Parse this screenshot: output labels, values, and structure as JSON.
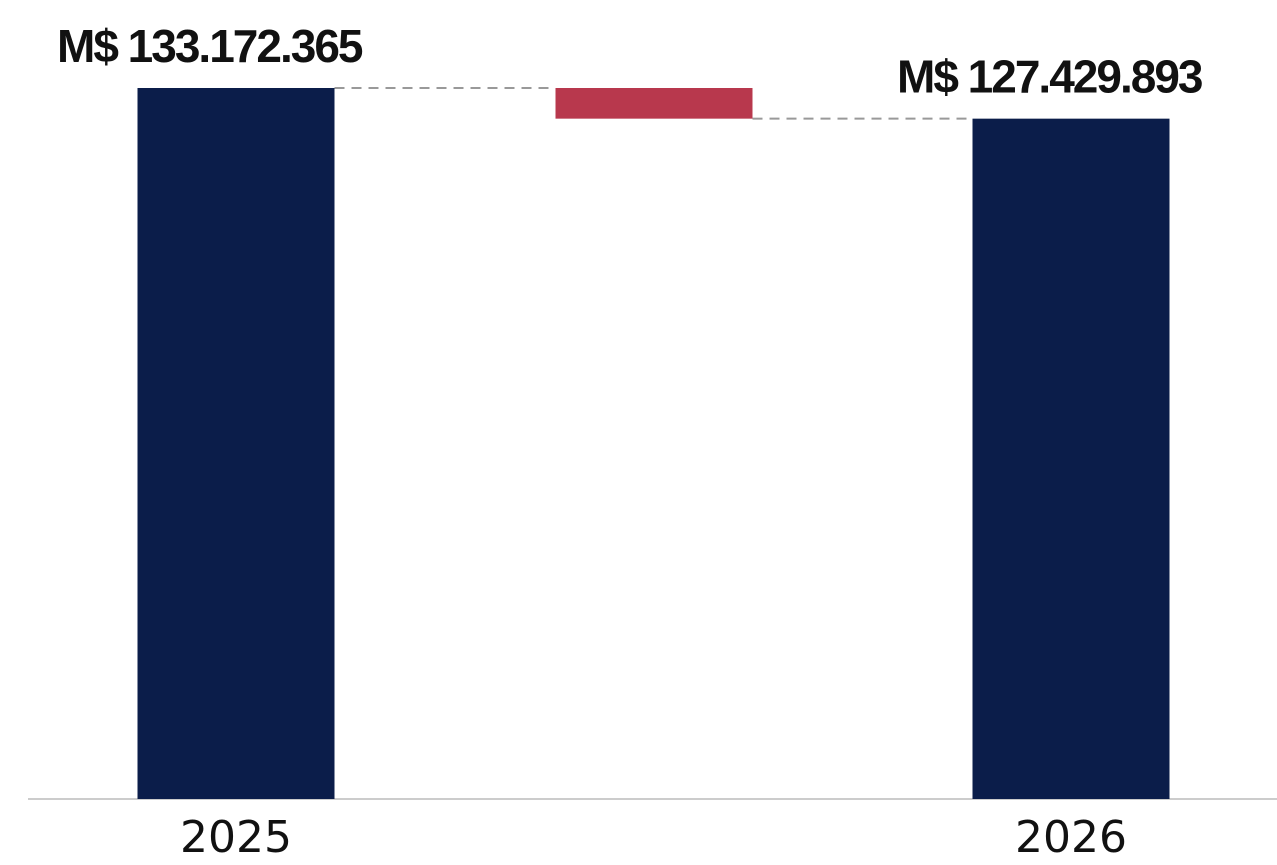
{
  "chart_data": {
    "type": "bar",
    "subtype": "waterfall",
    "categories": [
      "2025",
      "",
      "2026"
    ],
    "values": [
      133172365,
      -5742472,
      127429893
    ],
    "value_labels": [
      "M$ 133.172.365",
      "",
      "M$ 127.429.893"
    ],
    "title": "",
    "xlabel": "",
    "ylabel": "",
    "ylim": [
      0,
      133172365
    ],
    "grid": false,
    "legend": "none",
    "connectors": true,
    "colors": {
      "total": "#0b1d4a",
      "decrease": "#b8384d",
      "connector": "#999999",
      "baseline": "#cccccc"
    }
  }
}
